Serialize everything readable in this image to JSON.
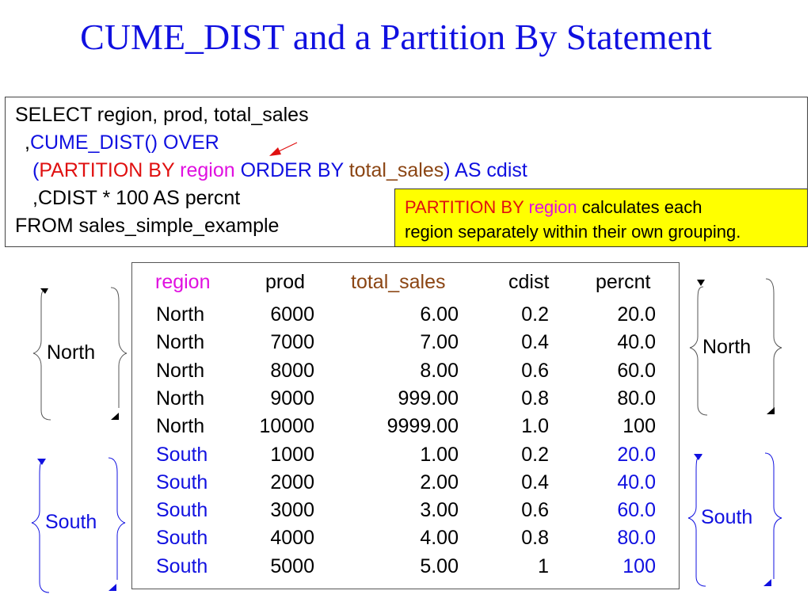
{
  "title": "CUME_DIST and a Partition By Statement",
  "sql": {
    "line1": "SELECT region, prod, total_sales",
    "line2_prefix": ",",
    "line2_func": "CUME_DIST() OVER",
    "line3_open": "(",
    "line3_partition": "PARTITION BY",
    "line3_region": "region",
    "line3_order": "ORDER BY",
    "line3_total": "total_sales",
    "line3_close": ")",
    "line3_alias": "AS cdist",
    "line4": ",CDIST * 100 AS percnt",
    "line5": "FROM sales_simple_example"
  },
  "note": {
    "partition": "PARTITION BY",
    "region": "region",
    "rest1": "calculates each",
    "line2": "region separately within their own grouping."
  },
  "table": {
    "headers": {
      "region": "region",
      "prod": "prod",
      "total_sales": "total_sales",
      "cdist": "cdist",
      "percnt": "percnt"
    },
    "rows": [
      {
        "region": "North",
        "prod": "6000",
        "total_sales": "6.00",
        "cdist": "0.2",
        "percnt": "20.0"
      },
      {
        "region": "North",
        "prod": "7000",
        "total_sales": "7.00",
        "cdist": "0.4",
        "percnt": "40.0"
      },
      {
        "region": "North",
        "prod": "8000",
        "total_sales": "8.00",
        "cdist": "0.6",
        "percnt": "60.0"
      },
      {
        "region": "North",
        "prod": "9000",
        "total_sales": "999.00",
        "cdist": "0.8",
        "percnt": "80.0"
      },
      {
        "region": "North",
        "prod": "10000",
        "total_sales": "9999.00",
        "cdist": "1.0",
        "percnt": "100"
      },
      {
        "region": "South",
        "prod": "1000",
        "total_sales": "1.00",
        "cdist": "0.2",
        "percnt": "20.0"
      },
      {
        "region": "South",
        "prod": "2000",
        "total_sales": "2.00",
        "cdist": "0.4",
        "percnt": "40.0"
      },
      {
        "region": "South",
        "prod": "3000",
        "total_sales": "3.00",
        "cdist": "0.6",
        "percnt": "60.0"
      },
      {
        "region": "South",
        "prod": "4000",
        "total_sales": "4.00",
        "cdist": "0.8",
        "percnt": "80.0"
      },
      {
        "region": "South",
        "prod": "5000",
        "total_sales": "5.00",
        "cdist": "1",
        "percnt": "100"
      }
    ]
  },
  "brackets": {
    "left_north": "North",
    "left_south": "South",
    "right_north": "North",
    "right_south": "South"
  },
  "colors": {
    "title": "#1010e0",
    "north_text": "#000000",
    "south_text": "#1010e0",
    "region_header": "#e010e0",
    "total_sales_header": "#8b4513",
    "partition_keyword": "#e01010",
    "note_background": "#ffff00"
  }
}
